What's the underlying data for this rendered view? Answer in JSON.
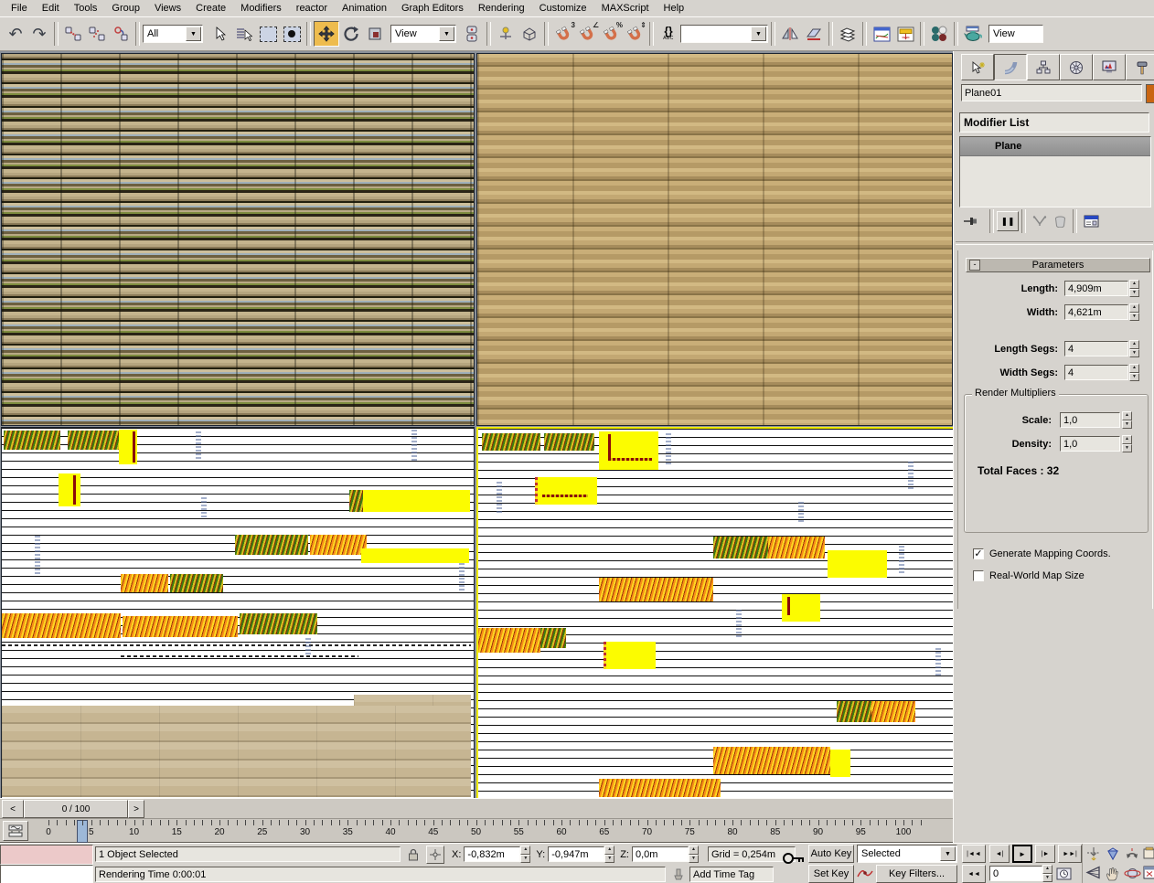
{
  "menu_bar": {
    "items": [
      "File",
      "Edit",
      "Tools",
      "Group",
      "Views",
      "Create",
      "Modifiers",
      "reactor",
      "Animation",
      "Graph Editors",
      "Rendering",
      "Customize",
      "MAXScript",
      "Help"
    ]
  },
  "toolbar": {
    "selection_filter": "All",
    "reference_coord_system": "View",
    "named_selection_value": "",
    "render_type": "View"
  },
  "icons": {
    "undo": "↶",
    "redo": "↷",
    "dropdown_arrow": "▼",
    "go_start": "|◄◄",
    "prev_frame": "◄|",
    "play": "►",
    "next_frame": "|►",
    "go_end": "►►|",
    "key_mode": "◄◄",
    "snap_3": "3",
    "snap_percent": "%",
    "snap_angle": "∠",
    "snap_spinner": "⇕",
    "named_sets": "{}",
    "named_sets_sub": "ABC",
    "show_end_result": "❚❚"
  },
  "command_panel": {
    "object_name": "Plane01",
    "object_color": "#c96512",
    "modifier_list_label": "Modifier List",
    "stack": [
      {
        "label": "Plane",
        "selected": true
      }
    ],
    "parameters": {
      "title": "Parameters",
      "collapse": "-",
      "rows": [
        {
          "label": "Length:",
          "value": "4,909m"
        },
        {
          "label": "Width:",
          "value": "4,621m"
        },
        {
          "label": "Length Segs:",
          "value": "4"
        },
        {
          "label": "Width Segs:",
          "value": "4"
        }
      ],
      "render_multipliers": {
        "title": "Render Multipliers",
        "rows": [
          {
            "label": "Scale:",
            "value": "1,0"
          },
          {
            "label": "Density:",
            "value": "1,0"
          }
        ],
        "total_faces": "Total Faces : 32"
      },
      "checkboxes": [
        {
          "label": "Generate Mapping Coords.",
          "checked": "✓"
        },
        {
          "label": "Real-World Map Size",
          "checked": ""
        }
      ]
    }
  },
  "time_slider": {
    "prev": "<",
    "value": "0 / 100",
    "next": ">"
  },
  "track_bar": {
    "labels": [
      "0",
      "5",
      "10",
      "15",
      "20",
      "25",
      "30",
      "35",
      "40",
      "45",
      "50",
      "55",
      "60",
      "65",
      "70",
      "75",
      "80",
      "85",
      "90",
      "95",
      "100"
    ]
  },
  "status_bar": {
    "selection_status": "1 Object Selected",
    "coord_x_label": "X:",
    "coord_x": "-0,832m",
    "coord_y_label": "Y:",
    "coord_y": "-0,947m",
    "coord_z_label": "Z:",
    "coord_z": "0,0m",
    "grid_size": "Grid = 0,254m",
    "prompt_line": "Rendering Time  0:00:01",
    "add_time_tag": "Add Time Tag"
  },
  "animation_controls": {
    "auto_key": "Auto Key",
    "set_key": "Set Key",
    "key_filter_mode": "Selected",
    "key_filters": "Key Filters...",
    "current_frame": "0"
  }
}
